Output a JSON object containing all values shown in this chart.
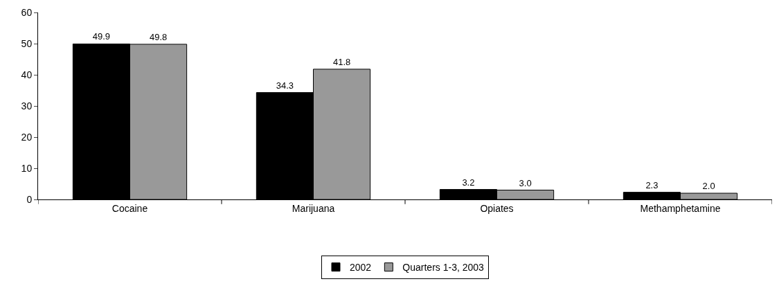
{
  "chart_data": {
    "type": "bar",
    "categories": [
      "Cocaine",
      "Marijuana",
      "Opiates",
      "Methamphetamine"
    ],
    "series": [
      {
        "name": "2002",
        "color": "#000000",
        "values": [
          49.9,
          34.3,
          3.2,
          2.3
        ],
        "value_labels": [
          "49.9",
          "34.3",
          "3.2",
          "2.3"
        ]
      },
      {
        "name": "Quarters 1-3, 2003",
        "color": "#999999",
        "values": [
          49.8,
          41.8,
          3.0,
          2.0
        ],
        "value_labels": [
          "49.8",
          "41.8",
          "3.0",
          "2.0"
        ]
      }
    ],
    "ylim": [
      0,
      60
    ],
    "yticks": [
      0,
      10,
      20,
      30,
      40,
      50,
      60
    ],
    "legend": "bottom"
  }
}
